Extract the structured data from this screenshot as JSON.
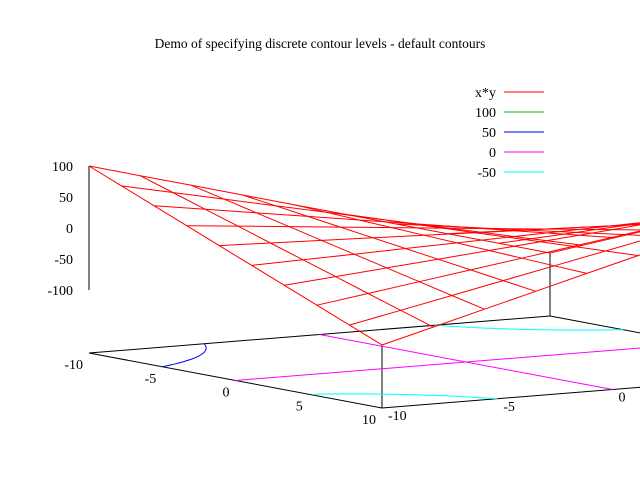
{
  "title": "Demo of specifying discrete contour levels  -  default contours",
  "chart_data": {
    "type": "surface",
    "function": "x*y",
    "xlim": [
      -10,
      10
    ],
    "ylim": [
      -10,
      10
    ],
    "zlim": [
      -100,
      100
    ],
    "grid_samples": 10,
    "x_ticks": [
      "-10",
      "-5",
      "0",
      "5",
      "10"
    ],
    "y_ticks": [
      "-10",
      "-5",
      "0",
      "5",
      "10"
    ],
    "z_ticks": [
      "100",
      "50",
      "0",
      "-50",
      "-100"
    ],
    "legend_position": "top-right",
    "series": [
      {
        "name": "x*y",
        "kind": "surface",
        "color": "#ff0000"
      },
      {
        "name": "100",
        "kind": "contour",
        "color": "#00c000"
      },
      {
        "name": "50",
        "kind": "contour",
        "color": "#0000ff"
      },
      {
        "name": "0",
        "kind": "contour",
        "color": "#ff00ff"
      },
      {
        "name": "-50",
        "kind": "contour",
        "color": "#00ffff"
      }
    ]
  }
}
